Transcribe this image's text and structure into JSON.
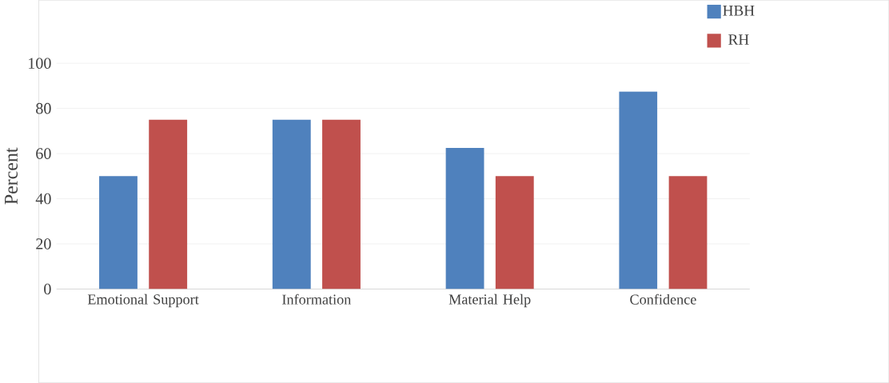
{
  "chart_data": {
    "type": "bar",
    "ylabel": "Percent",
    "categories": [
      "Emotional Support",
      "Information",
      "Material Help",
      "Confidence"
    ],
    "series": [
      {
        "name": "HBH",
        "color": "#4f81bd",
        "values": [
          50,
          75,
          62.5,
          87.5
        ]
      },
      {
        "name": "RH",
        "color": "#c0504d",
        "values": [
          75,
          75,
          50,
          50
        ]
      }
    ],
    "ylim": [
      0,
      100
    ],
    "yticks": [
      0,
      20,
      40,
      60,
      80,
      100
    ],
    "grid": "y",
    "legend": "top right"
  }
}
